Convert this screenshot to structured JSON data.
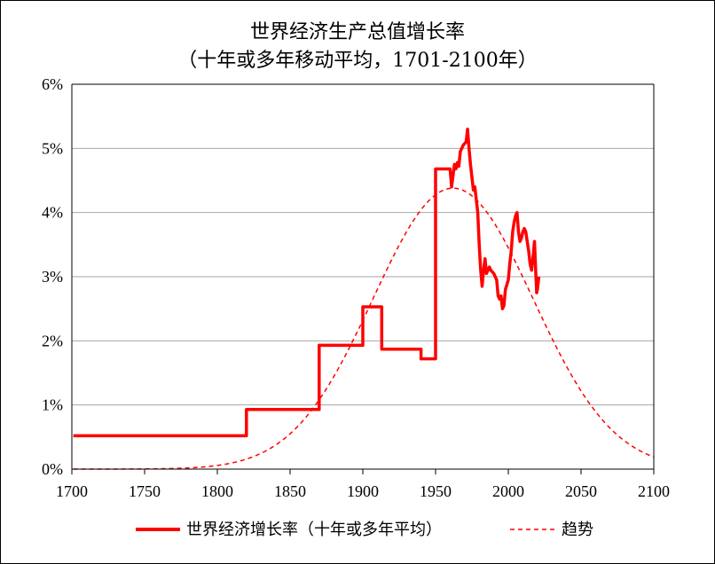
{
  "chart_data": {
    "type": "line",
    "title": "世界经济生产总值增长率",
    "subtitle": "（十年或多年移动平均，1701-2100年）",
    "xlabel": "",
    "ylabel": "",
    "xlim": [
      1700,
      2100
    ],
    "ylim": [
      0,
      6
    ],
    "x_ticks": [
      1700,
      1750,
      1800,
      1850,
      1900,
      1950,
      2000,
      2050,
      2100
    ],
    "y_ticks": [
      0,
      1,
      2,
      3,
      4,
      5,
      6
    ],
    "y_tick_labels": [
      "0%",
      "1%",
      "2%",
      "3%",
      "4%",
      "5%",
      "6%"
    ],
    "grid": "horizontal",
    "legend_position": "bottom",
    "series": [
      {
        "name": "世界经济增长率（十年或多年平均）",
        "color": "#ff0000",
        "style": "solid",
        "points": [
          [
            1701,
            0.52
          ],
          [
            1820,
            0.52
          ],
          [
            1820,
            0.93
          ],
          [
            1870,
            0.93
          ],
          [
            1870,
            1.93
          ],
          [
            1900,
            1.93
          ],
          [
            1900,
            2.53
          ],
          [
            1913,
            2.53
          ],
          [
            1913,
            1.87
          ],
          [
            1940,
            1.87
          ],
          [
            1940,
            1.72
          ],
          [
            1950,
            1.72
          ],
          [
            1950,
            4.68
          ],
          [
            1960,
            4.68
          ],
          [
            1961,
            4.4
          ],
          [
            1963,
            4.75
          ],
          [
            1964,
            4.68
          ],
          [
            1965,
            4.78
          ],
          [
            1966,
            4.72
          ],
          [
            1967,
            4.95
          ],
          [
            1969,
            5.05
          ],
          [
            1971,
            5.1
          ],
          [
            1972,
            5.3
          ],
          [
            1973,
            5.0
          ],
          [
            1974,
            4.75
          ],
          [
            1975,
            4.55
          ],
          [
            1976,
            4.35
          ],
          [
            1977,
            4.4
          ],
          [
            1978,
            4.2
          ],
          [
            1979,
            4.0
          ],
          [
            1980,
            3.5
          ],
          [
            1981,
            3.1
          ],
          [
            1982,
            2.85
          ],
          [
            1983,
            3.1
          ],
          [
            1984,
            3.28
          ],
          [
            1985,
            3.05
          ],
          [
            1986,
            3.1
          ],
          [
            1987,
            3.15
          ],
          [
            1988,
            3.1
          ],
          [
            1990,
            3.05
          ],
          [
            1992,
            2.95
          ],
          [
            1993,
            2.7
          ],
          [
            1994,
            2.65
          ],
          [
            1995,
            2.7
          ],
          [
            1996,
            2.5
          ],
          [
            1997,
            2.55
          ],
          [
            1998,
            2.8
          ],
          [
            2000,
            2.95
          ],
          [
            2001,
            3.2
          ],
          [
            2002,
            3.4
          ],
          [
            2003,
            3.7
          ],
          [
            2004,
            3.85
          ],
          [
            2005,
            3.95
          ],
          [
            2006,
            4.0
          ],
          [
            2007,
            3.7
          ],
          [
            2008,
            3.55
          ],
          [
            2009,
            3.6
          ],
          [
            2010,
            3.7
          ],
          [
            2011,
            3.75
          ],
          [
            2012,
            3.7
          ],
          [
            2013,
            3.55
          ],
          [
            2014,
            3.4
          ],
          [
            2015,
            3.2
          ],
          [
            2016,
            3.1
          ],
          [
            2017,
            3.3
          ],
          [
            2018,
            3.55
          ],
          [
            2019,
            3.0
          ],
          [
            2019.5,
            2.75
          ],
          [
            2020,
            2.8
          ],
          [
            2021,
            3.0
          ]
        ]
      },
      {
        "name": "趋势",
        "color": "#ff0000",
        "style": "dashed",
        "curve": {
          "form": "gaussian",
          "peak_x": 1962,
          "peak_y": 4.38,
          "sigma": 55
        },
        "x_range": [
          1701,
          2100
        ]
      }
    ]
  }
}
